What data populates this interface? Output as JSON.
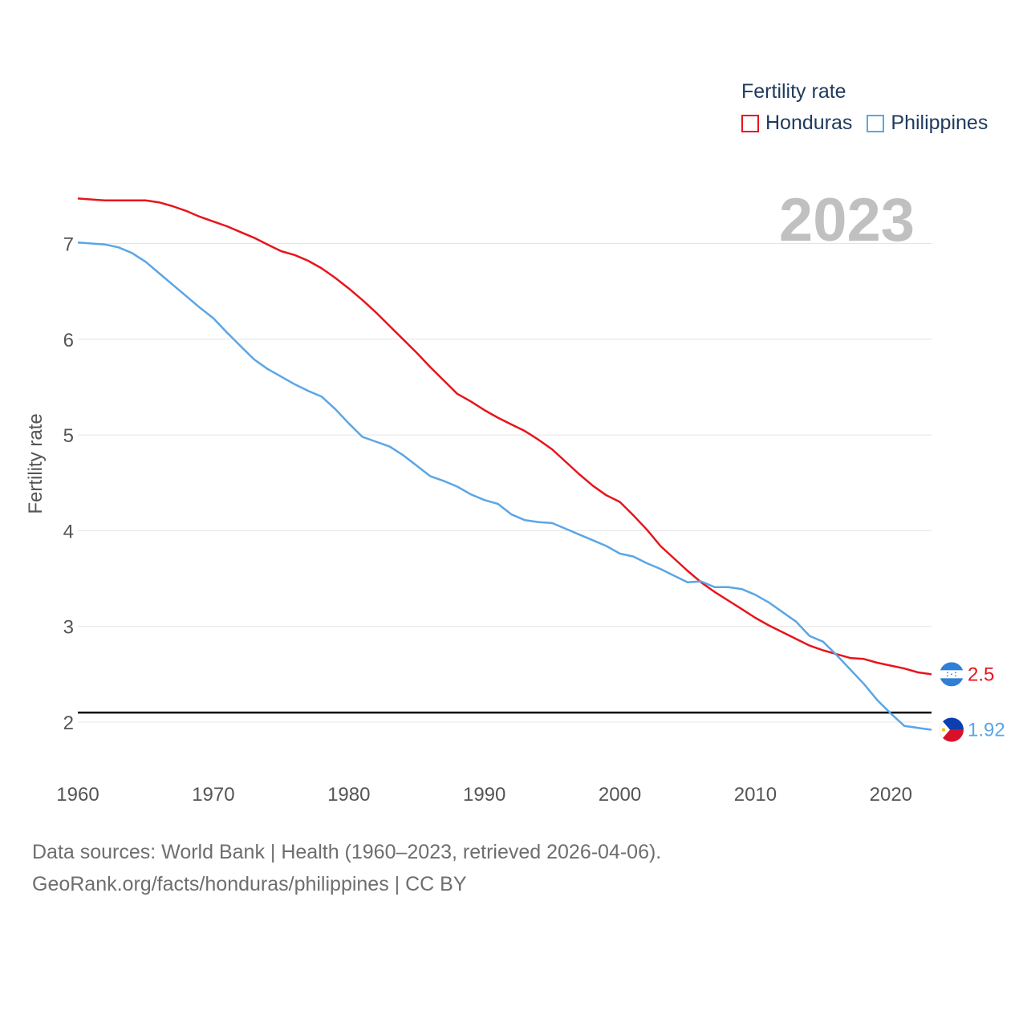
{
  "legend": {
    "title": "Fertility rate",
    "items": [
      {
        "label": "Honduras",
        "color": "#e8141c"
      },
      {
        "label": "Philippines",
        "color": "#5aa6e6"
      }
    ]
  },
  "footer": {
    "line1": "Data sources: World Bank | Health (1960–2023, retrieved 2026-04-06).",
    "line2": "GeoRank.org/facts/honduras/philippines | CC BY"
  },
  "chart_data": {
    "type": "line",
    "title": "Fertility rate",
    "current_year": "2023",
    "xlabel": "",
    "ylabel": "Fertility rate",
    "xlim": [
      1960,
      2023
    ],
    "ylim": [
      1.5,
      7.75
    ],
    "x_ticks": [
      "1960",
      "1970",
      "1980",
      "1990",
      "2000",
      "2010",
      "2020"
    ],
    "y_ticks": [
      "2",
      "3",
      "4",
      "5",
      "6",
      "7"
    ],
    "grid": true,
    "reference_line": {
      "y": 2.1,
      "color": "#000000"
    },
    "series": [
      {
        "name": "Honduras",
        "color": "#e8141c",
        "end_label": "2.5",
        "flag": "honduras-flag",
        "x": [
          1960,
          1962,
          1963,
          1965,
          1966,
          1967,
          1968,
          1969,
          1970,
          1971,
          1972,
          1973,
          1974,
          1975,
          1976,
          1977,
          1978,
          1979,
          1980,
          1981,
          1982,
          1983,
          1984,
          1985,
          1986,
          1987,
          1988,
          1989,
          1990,
          1991,
          1992,
          1993,
          1994,
          1995,
          1996,
          1997,
          1998,
          1999,
          2000,
          2001,
          2002,
          2003,
          2004,
          2005,
          2006,
          2007,
          2008,
          2009,
          2010,
          2011,
          2012,
          2013,
          2014,
          2015,
          2016,
          2017,
          2018,
          2019,
          2020,
          2021,
          2022,
          2023
        ],
        "values": [
          7.47,
          7.45,
          7.45,
          7.45,
          7.43,
          7.39,
          7.34,
          7.28,
          7.23,
          7.18,
          7.12,
          7.06,
          6.99,
          6.92,
          6.88,
          6.82,
          6.74,
          6.64,
          6.53,
          6.41,
          6.28,
          6.14,
          6.0,
          5.86,
          5.71,
          5.57,
          5.43,
          5.35,
          5.26,
          5.18,
          5.11,
          5.04,
          4.95,
          4.85,
          4.72,
          4.59,
          4.47,
          4.37,
          4.3,
          4.16,
          4.01,
          3.84,
          3.71,
          3.58,
          3.46,
          3.36,
          3.27,
          3.18,
          3.09,
          3.01,
          2.94,
          2.87,
          2.8,
          2.75,
          2.71,
          2.67,
          2.66,
          2.62,
          2.59,
          2.56,
          2.52,
          2.5
        ]
      },
      {
        "name": "Philippines",
        "color": "#5aa6e6",
        "end_label": "1.92",
        "flag": "philippines-flag",
        "x": [
          1960,
          1962,
          1963,
          1964,
          1965,
          1966,
          1967,
          1968,
          1969,
          1970,
          1971,
          1972,
          1973,
          1974,
          1975,
          1976,
          1977,
          1978,
          1979,
          1980,
          1981,
          1982,
          1983,
          1984,
          1985,
          1986,
          1987,
          1988,
          1989,
          1990,
          1991,
          1992,
          1993,
          1994,
          1995,
          1996,
          1997,
          1998,
          1999,
          2000,
          2001,
          2002,
          2003,
          2004,
          2005,
          2006,
          2007,
          2008,
          2009,
          2010,
          2011,
          2012,
          2013,
          2014,
          2015,
          2016,
          2017,
          2018,
          2019,
          2020,
          2021,
          2022,
          2023
        ],
        "values": [
          7.01,
          6.99,
          6.96,
          6.9,
          6.81,
          6.69,
          6.57,
          6.45,
          6.33,
          6.22,
          6.07,
          5.93,
          5.79,
          5.69,
          5.61,
          5.53,
          5.46,
          5.4,
          5.27,
          5.12,
          4.98,
          4.93,
          4.88,
          4.79,
          4.68,
          4.57,
          4.52,
          4.46,
          4.38,
          4.32,
          4.28,
          4.17,
          4.11,
          4.09,
          4.08,
          4.02,
          3.96,
          3.9,
          3.84,
          3.76,
          3.73,
          3.66,
          3.6,
          3.53,
          3.46,
          3.47,
          3.41,
          3.41,
          3.39,
          3.33,
          3.25,
          3.15,
          3.05,
          2.9,
          2.84,
          2.7,
          2.55,
          2.4,
          2.23,
          2.09,
          1.96,
          1.94,
          1.92
        ]
      }
    ]
  }
}
